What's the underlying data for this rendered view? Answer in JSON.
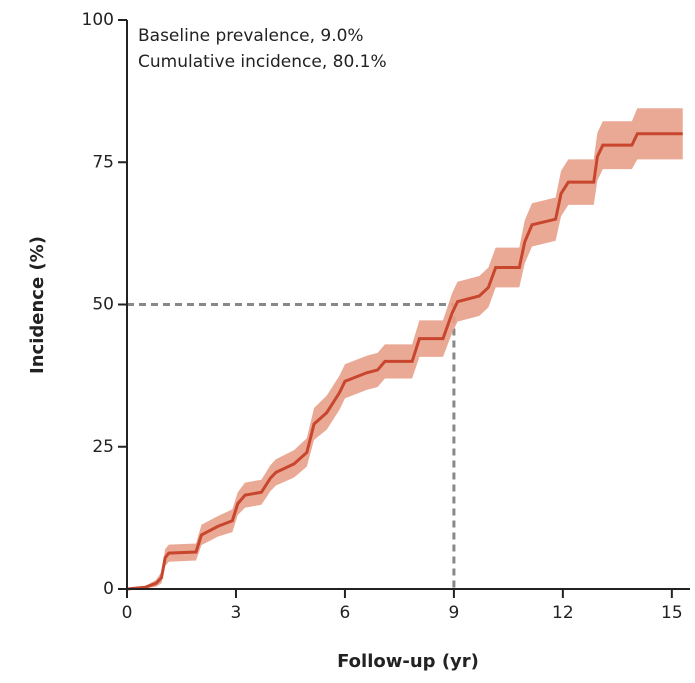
{
  "chart_data": {
    "type": "line",
    "annotations": [
      "Baseline prevalence, 9.0%",
      "Cumulative incidence, 80.1%"
    ],
    "xlabel": "Follow-up (yr)",
    "ylabel": "Incidence (%)",
    "xlim": [
      0,
      15.5
    ],
    "ylim": [
      0,
      100
    ],
    "xticks": [
      0,
      3,
      6,
      9,
      12,
      15
    ],
    "yticks": [
      0,
      25,
      50,
      75,
      100
    ],
    "reference": {
      "x": 9,
      "y": 50,
      "color": "#888888"
    },
    "x": [
      0,
      0.5,
      0.8,
      0.95,
      1.05,
      1.15,
      1.9,
      2.05,
      2.5,
      2.9,
      3.05,
      3.25,
      3.7,
      3.95,
      4.1,
      4.6,
      4.95,
      5.15,
      5.5,
      5.85,
      6.0,
      6.6,
      6.9,
      7.1,
      7.85,
      8.05,
      8.7,
      8.95,
      9.1,
      9.7,
      9.95,
      10.15,
      10.8,
      10.95,
      11.15,
      11.8,
      11.95,
      12.15,
      12.85,
      12.95,
      13.1,
      13.9,
      14.05,
      15.3
    ],
    "series": [
      {
        "color": "#c8462e",
        "band_color": "#e7a089",
        "values": [
          0,
          0.3,
          1,
          2,
          5.5,
          6.3,
          6.5,
          9.5,
          11,
          12,
          15,
          16.5,
          17,
          19.5,
          20.5,
          22,
          24,
          29,
          31,
          34.5,
          36.5,
          38,
          38.5,
          40,
          40,
          44,
          44,
          48.5,
          50.5,
          51.5,
          53,
          56.5,
          56.5,
          61,
          64,
          65,
          69.5,
          71.5,
          71.5,
          76,
          78,
          78,
          80,
          80
        ],
        "lower": [
          0,
          0.1,
          0.4,
          1,
          4,
          4.8,
          5,
          7.7,
          9.2,
          10,
          13,
          14.3,
          14.8,
          17.2,
          18.2,
          19.6,
          21.5,
          26.2,
          28,
          31.5,
          33.5,
          35,
          35.5,
          37,
          37,
          40.8,
          40.8,
          45,
          47,
          48,
          49.5,
          53,
          53,
          57.2,
          60.2,
          61.2,
          65.5,
          67.5,
          67.5,
          71.8,
          73.8,
          73.8,
          75.5,
          75.5
        ],
        "upper": [
          0,
          0.5,
          1.6,
          3,
          7,
          7.8,
          8,
          11.3,
          12.8,
          14,
          17,
          18.7,
          19.2,
          21.8,
          22.8,
          24.4,
          26.5,
          31.8,
          34,
          37.5,
          39.5,
          41,
          41.5,
          43,
          43,
          47.2,
          47.2,
          52,
          54,
          55,
          56.5,
          60,
          60,
          64.8,
          67.8,
          68.8,
          73.5,
          75.5,
          75.5,
          80.2,
          82.2,
          82.2,
          84.5,
          84.5
        ]
      }
    ]
  }
}
